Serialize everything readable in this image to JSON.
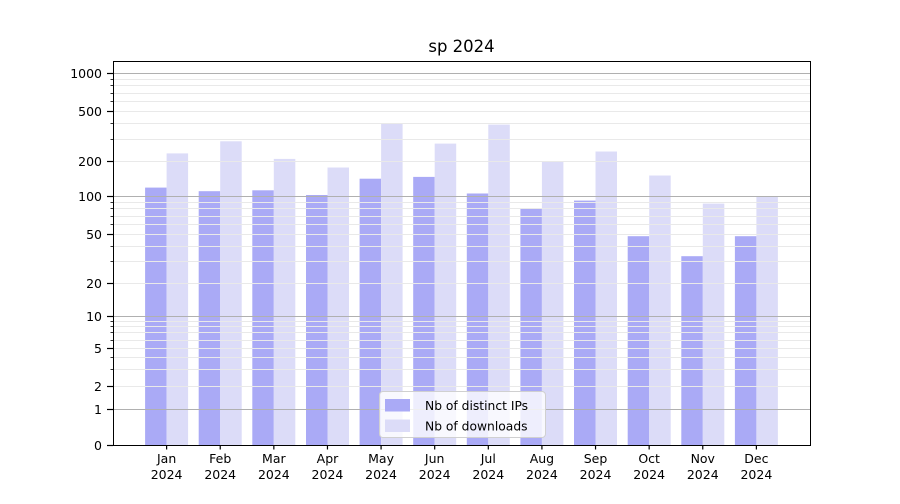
{
  "chart_data": {
    "type": "bar",
    "title": "sp 2024",
    "xlabel": "",
    "ylabel": "",
    "categories": [
      "Jan",
      "Feb",
      "Mar",
      "Apr",
      "May",
      "Jun",
      "Jul",
      "Aug",
      "Sep",
      "Oct",
      "Nov",
      "Dec"
    ],
    "x_tick_year": "2024",
    "series": [
      {
        "name": "Nb of distinct IPs",
        "color": "#aaaaf6",
        "values": [
          118,
          110,
          112,
          102,
          141,
          146,
          105,
          80,
          92,
          48,
          33,
          48
        ]
      },
      {
        "name": "Nb of downloads",
        "color": "#dcdcf8",
        "values": [
          230,
          287,
          208,
          176,
          398,
          275,
          390,
          198,
          238,
          150,
          87,
          100
        ]
      }
    ],
    "yscale": "symlog",
    "yticks": [
      0,
      1,
      2,
      5,
      10,
      20,
      50,
      100,
      200,
      500,
      1000
    ],
    "ytick_labels": [
      "0",
      "1",
      "2",
      "5",
      "10",
      "20",
      "50",
      "100",
      "200",
      "500",
      "1000"
    ],
    "ylim": [
      0,
      1150
    ],
    "grid": true,
    "grid_on_top_of_bars": true,
    "legend": {
      "position": "inside lower-center",
      "entries": [
        "Nb of distinct IPs",
        "Nb of downloads"
      ]
    }
  },
  "colors": {
    "background": "#ffffff",
    "bar_distinct_ips": "#aaaaf6",
    "bar_downloads": "#dcdcf8",
    "grid_major": "#b0b0b0",
    "grid_minor": "#e9e9e9",
    "axis": "#000000",
    "legend_border": "#d0d0d0",
    "legend_fill": "rgba(255,255,255,0.8)"
  }
}
